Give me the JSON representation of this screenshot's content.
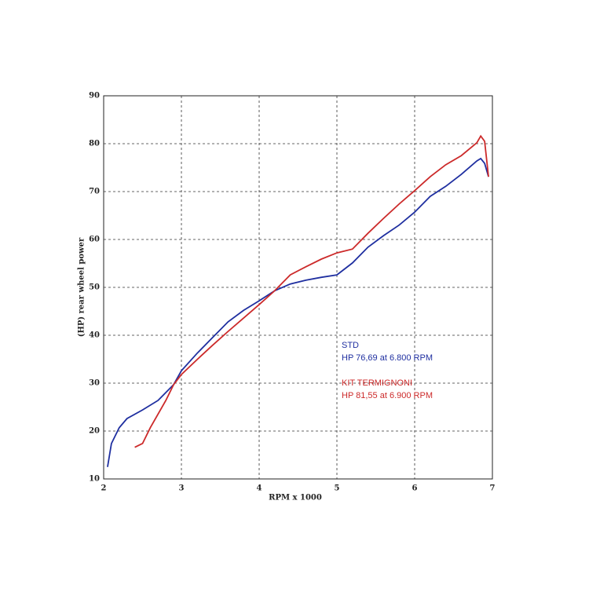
{
  "chart_data": {
    "type": "line",
    "xlabel": "RPM x 1000",
    "ylabel": "(HP) rear wheel power",
    "xlim": [
      2,
      7
    ],
    "ylim": [
      10,
      90
    ],
    "xticks": [
      2,
      3,
      4,
      5,
      6,
      7
    ],
    "yticks": [
      10,
      20,
      30,
      40,
      50,
      60,
      70,
      80,
      90
    ],
    "grid": true,
    "series": [
      {
        "name": "STD",
        "color": "#1f2fa0",
        "x": [
          2.05,
          2.1,
          2.2,
          2.3,
          2.5,
          2.7,
          2.9,
          3.0,
          3.2,
          3.4,
          3.6,
          3.8,
          4.0,
          4.2,
          4.4,
          4.6,
          4.8,
          5.0,
          5.2,
          5.4,
          5.6,
          5.8,
          6.0,
          6.2,
          6.4,
          6.6,
          6.8,
          6.85,
          6.9,
          6.95
        ],
        "values": [
          12.5,
          17.4,
          20.7,
          22.6,
          24.4,
          26.4,
          29.7,
          32.6,
          36.2,
          39.5,
          42.8,
          45.2,
          47.2,
          49.3,
          50.7,
          51.5,
          52.1,
          52.6,
          55.1,
          58.4,
          60.8,
          63.0,
          65.7,
          69.0,
          71.1,
          73.6,
          76.4,
          76.9,
          75.9,
          73.1
        ]
      },
      {
        "name": "KIT TERMIGNONI",
        "color": "#cc2a2a",
        "x": [
          2.4,
          2.5,
          2.6,
          2.8,
          2.9,
          3.0,
          3.2,
          3.4,
          3.6,
          3.8,
          4.0,
          4.2,
          4.4,
          4.6,
          4.8,
          5.0,
          5.2,
          5.4,
          5.6,
          5.8,
          6.0,
          6.2,
          6.4,
          6.6,
          6.8,
          6.85,
          6.9,
          6.95
        ],
        "values": [
          16.6,
          17.4,
          20.7,
          26.4,
          29.7,
          31.8,
          34.9,
          37.9,
          40.8,
          43.6,
          46.4,
          49.3,
          52.6,
          54.3,
          55.9,
          57.2,
          58.0,
          61.3,
          64.4,
          67.4,
          70.2,
          73.1,
          75.6,
          77.5,
          80.2,
          81.6,
          80.5,
          73.1
        ]
      }
    ],
    "annotations": [
      "HP 76,69 at 6.800 RPM",
      "HP 81,55 at 6.900 RPM"
    ]
  }
}
